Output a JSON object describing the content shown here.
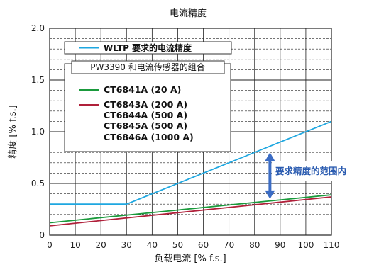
{
  "chart_data": {
    "type": "line",
    "title": "电流精度",
    "xlabel": "负载电流 [% f.s.]",
    "ylabel": "精度 [% f.s.]",
    "xlim": [
      0,
      110
    ],
    "ylim": [
      0,
      2.0
    ],
    "x_ticks": [
      0,
      10,
      20,
      30,
      40,
      50,
      60,
      70,
      80,
      90,
      100,
      110
    ],
    "y_ticks": [
      "0",
      "0.5",
      "1.0",
      "1.5",
      "2.0"
    ],
    "grid": true,
    "series": [
      {
        "name": "WLTP 要求的电流精度",
        "color": "#1ea7e0",
        "points": [
          [
            0,
            0.3
          ],
          [
            30,
            0.3
          ],
          [
            110,
            1.1
          ]
        ]
      },
      {
        "name": "CT6841A (20 A)",
        "color": "#1a9a3c",
        "points": [
          [
            0,
            0.12
          ],
          [
            110,
            0.39
          ]
        ]
      },
      {
        "name": "CT6843A (200 A) CT6844A (500 A) CT6845A (500 A) CT6846A (1000 A)",
        "color": "#b0203a",
        "points": [
          [
            0,
            0.09
          ],
          [
            110,
            0.37
          ]
        ]
      }
    ],
    "legend": {
      "wltp_label": "WLTP 要求的电流精度",
      "group_title": "PW3390 和电流传感器的组合",
      "green_label": "CT6841A (20 A)",
      "red_labels": [
        "CT6843A (200 A)",
        "CT6844A (500 A)",
        "CT6845A (500 A)",
        "CT6846A (1000 A)"
      ]
    },
    "annotation": {
      "text": "要求精度的范围内",
      "x": 86,
      "y_from": 0.35,
      "y_to": 0.8,
      "color": "#3b6cc4"
    }
  }
}
